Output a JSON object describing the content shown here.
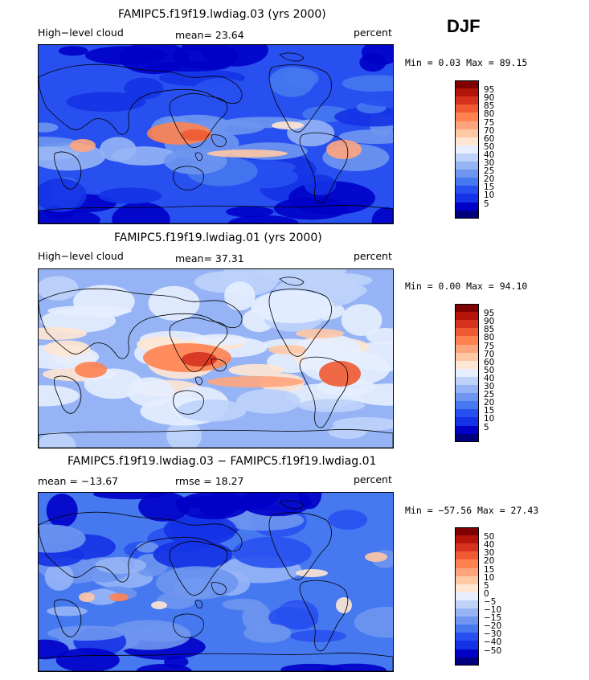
{
  "season": "DJF",
  "panels": [
    {
      "title": "FAMIPC5.f19f19.lwdiag.03 (yrs 2000)",
      "left_label": "High−level cloud",
      "center_label": "mean=  23.64",
      "right_label": "percent",
      "minmax": "Min =   0.03 Max =  89.15",
      "colors": [
        "#00007f",
        "#0000c8",
        "#1432e6",
        "#2850f0",
        "#4678f0",
        "#6e96f0",
        "#96b4f5",
        "#bed2fa",
        "#e6eeff",
        "#ffe6d2",
        "#ffc8a5",
        "#ffa57d",
        "#ff8250",
        "#f05a32",
        "#d7321e",
        "#b4140a",
        "#7f0000"
      ],
      "labels": [
        "95",
        "90",
        "85",
        "80",
        "75",
        "70",
        "60",
        "50",
        "40",
        "30",
        "25",
        "20",
        "15",
        "10",
        "5"
      ]
    },
    {
      "title": "FAMIPC5.f19f19.lwdiag.01 (yrs 2000)",
      "left_label": "High−level cloud",
      "center_label": "mean=  37.31",
      "right_label": "percent",
      "minmax": "Min =   0.00 Max =  94.10",
      "colors": [
        "#00007f",
        "#0000c8",
        "#1432e6",
        "#2850f0",
        "#4678f0",
        "#6e96f0",
        "#96b4f5",
        "#bed2fa",
        "#e6eeff",
        "#ffe6d2",
        "#ffc8a5",
        "#ffa57d",
        "#ff8250",
        "#f05a32",
        "#d7321e",
        "#b4140a",
        "#7f0000"
      ],
      "labels": [
        "95",
        "90",
        "85",
        "80",
        "75",
        "70",
        "60",
        "50",
        "40",
        "30",
        "25",
        "20",
        "15",
        "10",
        "5"
      ]
    },
    {
      "title": "FAMIPC5.f19f19.lwdiag.03 − FAMIPC5.f19f19.lwdiag.01",
      "left_label": "mean = −13.67",
      "center_label": "rmse =  18.27",
      "right_label": "percent",
      "minmax": "Min = −57.56 Max =  27.43",
      "colors": [
        "#00007f",
        "#0000c8",
        "#1432e6",
        "#2850f0",
        "#4678f0",
        "#6e96f0",
        "#96b4f5",
        "#bed2fa",
        "#e6eeff",
        "#ffe6d2",
        "#ffc8a5",
        "#ffa57d",
        "#ff8250",
        "#f05a32",
        "#d7321e",
        "#b4140a",
        "#7f0000"
      ],
      "labels": [
        "50",
        "40",
        "30",
        "20",
        "15",
        "10",
        "5",
        "0",
        "−5",
        "−10",
        "−15",
        "−20",
        "−30",
        "−40",
        "−50"
      ]
    }
  ],
  "chart_data": [
    {
      "type": "heatmap",
      "title": "FAMIPC5.f19f19.lwdiag.03 (yrs 2000)",
      "variable": "High−level cloud",
      "units": "percent",
      "mean": 23.64,
      "min": 0.03,
      "max": 89.15,
      "contour_levels": [
        5,
        10,
        15,
        20,
        25,
        30,
        40,
        50,
        60,
        70,
        75,
        80,
        85,
        90,
        95
      ]
    },
    {
      "type": "heatmap",
      "title": "FAMIPC5.f19f19.lwdiag.01 (yrs 2000)",
      "variable": "High−level cloud",
      "units": "percent",
      "mean": 37.31,
      "min": 0.0,
      "max": 94.1,
      "contour_levels": [
        5,
        10,
        15,
        20,
        25,
        30,
        40,
        50,
        60,
        70,
        75,
        80,
        85,
        90,
        95
      ]
    },
    {
      "type": "heatmap",
      "title": "FAMIPC5.f19f19.lwdiag.03 − FAMIPC5.f19f19.lwdiag.01",
      "units": "percent",
      "mean": -13.67,
      "rmse": 18.27,
      "min": -57.56,
      "max": 27.43,
      "contour_levels": [
        -50,
        -40,
        -30,
        -20,
        -15,
        -10,
        -5,
        0,
        5,
        10,
        15,
        20,
        30,
        40,
        50
      ]
    }
  ]
}
